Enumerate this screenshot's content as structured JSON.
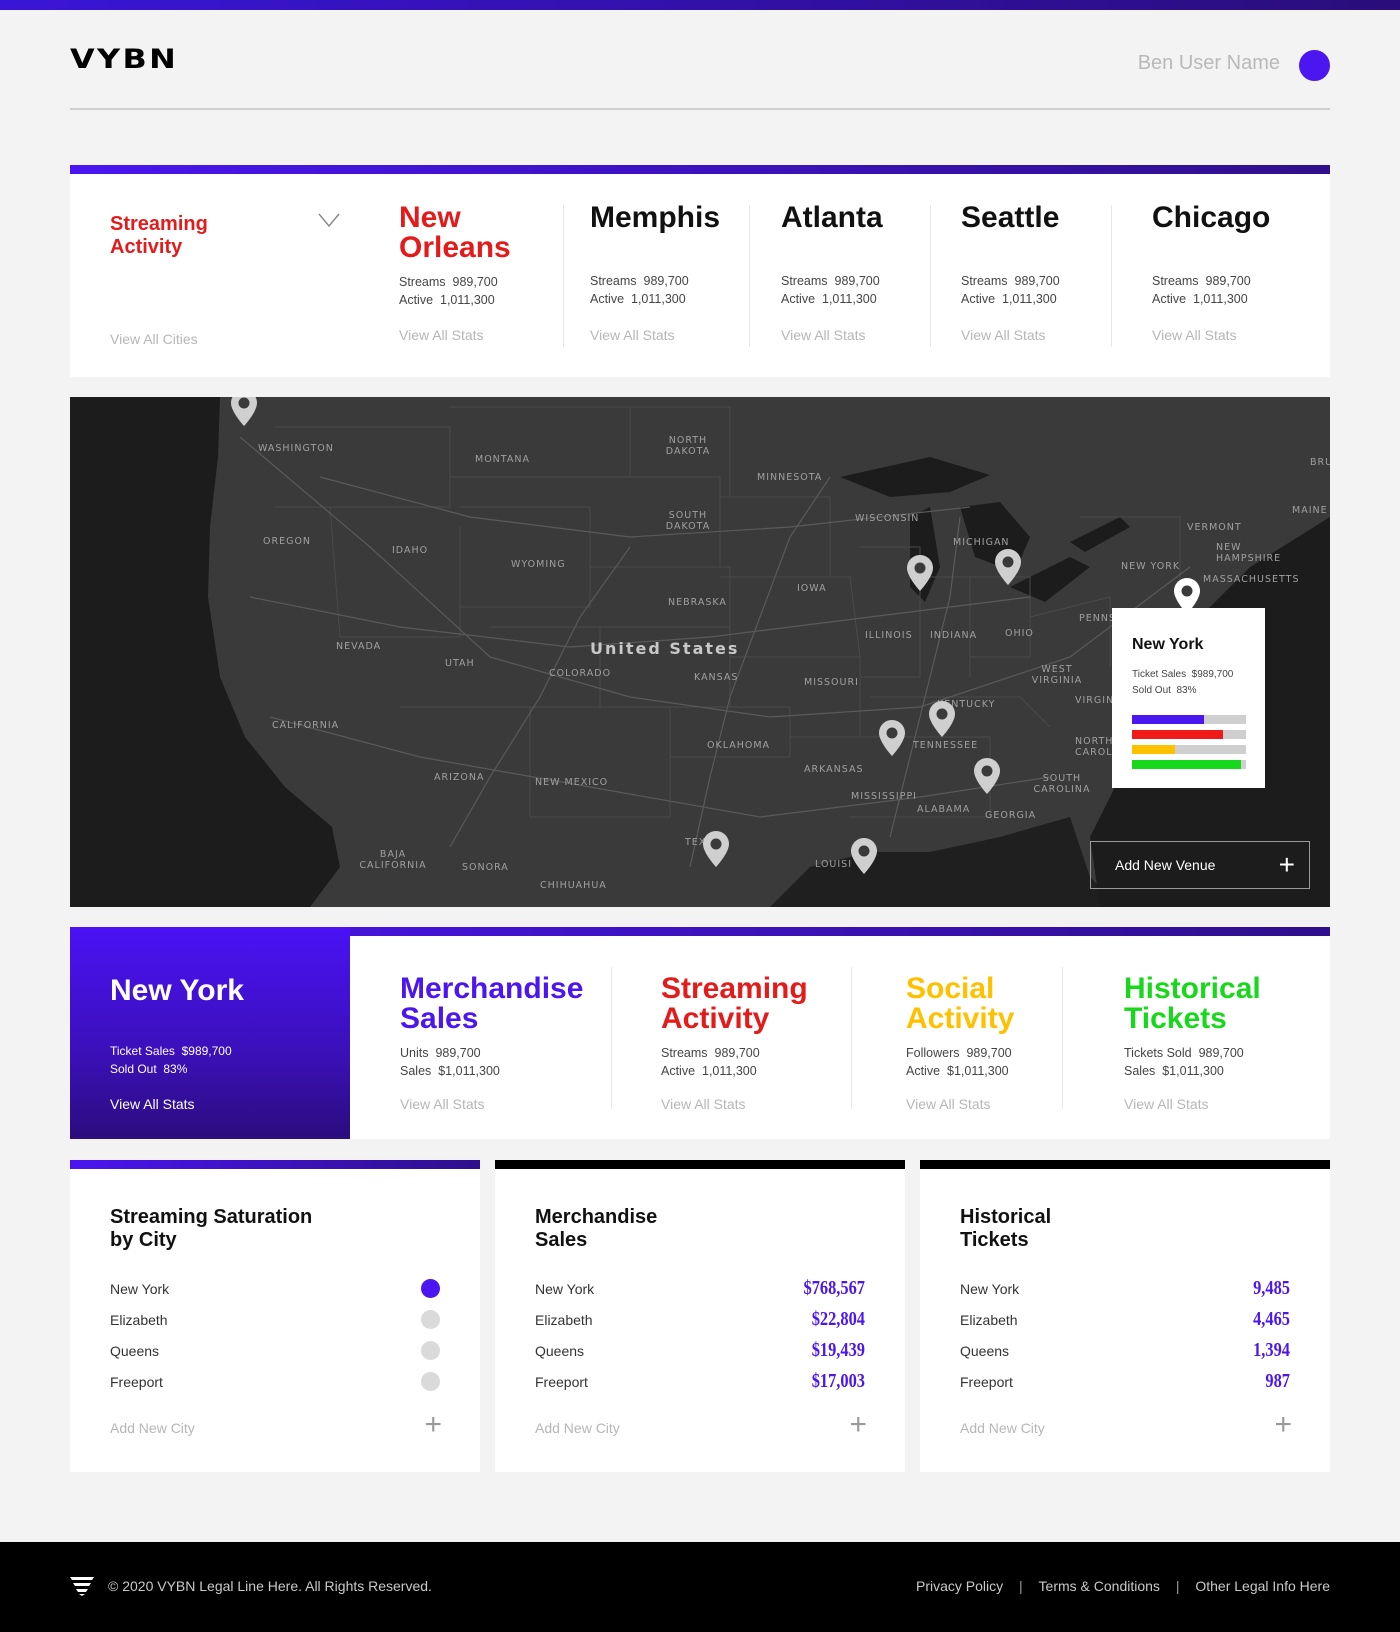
{
  "header": {
    "logo": "VYBN",
    "user_name": "Ben User Name"
  },
  "cities_card": {
    "title": "Streaming Activity",
    "view_all_cities": "View All Cities",
    "cities": [
      {
        "name": "New Orleans",
        "streams_label": "Streams",
        "streams": "989,700",
        "active_label": "Active",
        "active": "1,011,300",
        "link": "View All Stats"
      },
      {
        "name": "Memphis",
        "streams_label": "Streams",
        "streams": "989,700",
        "active_label": "Active",
        "active": "1,011,300",
        "link": "View All Stats"
      },
      {
        "name": "Atlanta",
        "streams_label": "Streams",
        "streams": "989,700",
        "active_label": "Active",
        "active": "1,011,300",
        "link": "View All Stats"
      },
      {
        "name": "Seattle",
        "streams_label": "Streams",
        "streams": "989,700",
        "active_label": "Active",
        "active": "1,011,300",
        "link": "View All Stats"
      },
      {
        "name": "Chicago",
        "streams_label": "Streams",
        "streams": "989,700",
        "active_label": "Active",
        "active": "1,011,300",
        "link": "View All Stats"
      }
    ],
    "accent": "#e41b1b"
  },
  "map": {
    "labels": [
      "WASHINGTON",
      "MONTANA",
      "NORTH DAKOTA",
      "MINNESOTA",
      "OREGON",
      "IDAHO",
      "WYOMING",
      "SOUTH DAKOTA",
      "WISCONSIN",
      "MICHIGAN",
      "VERMONT",
      "MAINE",
      "NEW HAMPSHIRE",
      "MASSACHUSETTS",
      "NEW YORK",
      "IOWA",
      "NEBRASKA",
      "NEVADA",
      "UTAH",
      "COLORADO",
      "United States",
      "KANSAS",
      "ILLINOIS",
      "INDIANA",
      "OHIO",
      "PENNS",
      "MISSOURI",
      "WEST VIRGINIA",
      "VIRGINI",
      "CALIFORNIA",
      "KENTUCKY",
      "TENNESSEE",
      "NORTH CAROLIN",
      "ARIZONA",
      "NEW MEXICO",
      "OKLAHOMA",
      "ARKANSAS",
      "MISSISSIPPI",
      "ALABAMA",
      "GEORGIA",
      "SOUTH CAROLINA",
      "BAJA CALIFORNIA",
      "SONORA",
      "CHIHUAHUA",
      "TEXAS",
      "LOUISI",
      "BRU"
    ],
    "popup": {
      "city": "New York",
      "ticket_sales_label": "Ticket Sales",
      "ticket_sales": "$989,700",
      "sold_out_label": "Sold Out",
      "sold_out": "83%",
      "bars": [
        {
          "color": "#4b16f0",
          "fraction": 0.63
        },
        {
          "color": "#f01a1a",
          "fraction": 0.8
        },
        {
          "color": "#ffc000",
          "fraction": 0.38
        },
        {
          "color": "#17d81a",
          "fraction": 0.96
        }
      ]
    },
    "add_venue": "Add New Venue"
  },
  "stats_card": {
    "city": "New York",
    "ticket_sales_label": "Ticket Sales",
    "ticket_sales": "$989,700",
    "sold_out_label": "Sold Out",
    "sold_out": "83%",
    "view_all": "View All Stats",
    "columns": [
      {
        "name": "Merchandise Sales",
        "color": "#4b16f0",
        "l1": "Units",
        "v1": "989,700",
        "l2": "Sales",
        "v2": "$1,011,300",
        "link": "View All Stats"
      },
      {
        "name": "Streaming Activity",
        "color": "#e41b1b",
        "l1": "Streams",
        "v1": "989,700",
        "l2": "Active",
        "v2": "1,011,300",
        "link": "View All Stats"
      },
      {
        "name": "Social Activity",
        "color": "#ffc000",
        "l1": "Followers",
        "v1": "989,700",
        "l2": "Active",
        "v2": "$1,011,300",
        "link": "View All Stats"
      },
      {
        "name": "Historical Tickets",
        "color": "#17d81a",
        "l1": "Tickets Sold",
        "v1": "989,700",
        "l2": "Sales",
        "v2": "$1,011,300",
        "link": "View All Stats"
      }
    ]
  },
  "saturation_card": {
    "title": "Streaming Saturation by City",
    "rows": [
      {
        "city": "New York",
        "active": true
      },
      {
        "city": "Elizabeth",
        "active": false
      },
      {
        "city": "Queens",
        "active": false
      },
      {
        "city": "Freeport",
        "active": false
      }
    ],
    "add": "Add New City"
  },
  "merch_card": {
    "title": "Merchandise Sales",
    "rows": [
      {
        "city": "New York",
        "value": "$768,567"
      },
      {
        "city": "Elizabeth",
        "value": "$22,804"
      },
      {
        "city": "Queens",
        "value": "$19,439"
      },
      {
        "city": "Freeport",
        "value": "$17,003"
      }
    ],
    "add": "Add New City"
  },
  "tickets_card": {
    "title": "Historical Tickets",
    "rows": [
      {
        "city": "New York",
        "value": "9,485"
      },
      {
        "city": "Elizabeth",
        "value": "4,465"
      },
      {
        "city": "Queens",
        "value": "1,394"
      },
      {
        "city": "Freeport",
        "value": "987"
      }
    ],
    "add": "Add New City"
  },
  "footer": {
    "copyright": "© 2020 VYBN Legal Line Here. All Rights Reserved.",
    "privacy": "Privacy Policy",
    "terms": "Terms & Conditions",
    "other": "Other Legal Info Here",
    "separator": "|"
  }
}
